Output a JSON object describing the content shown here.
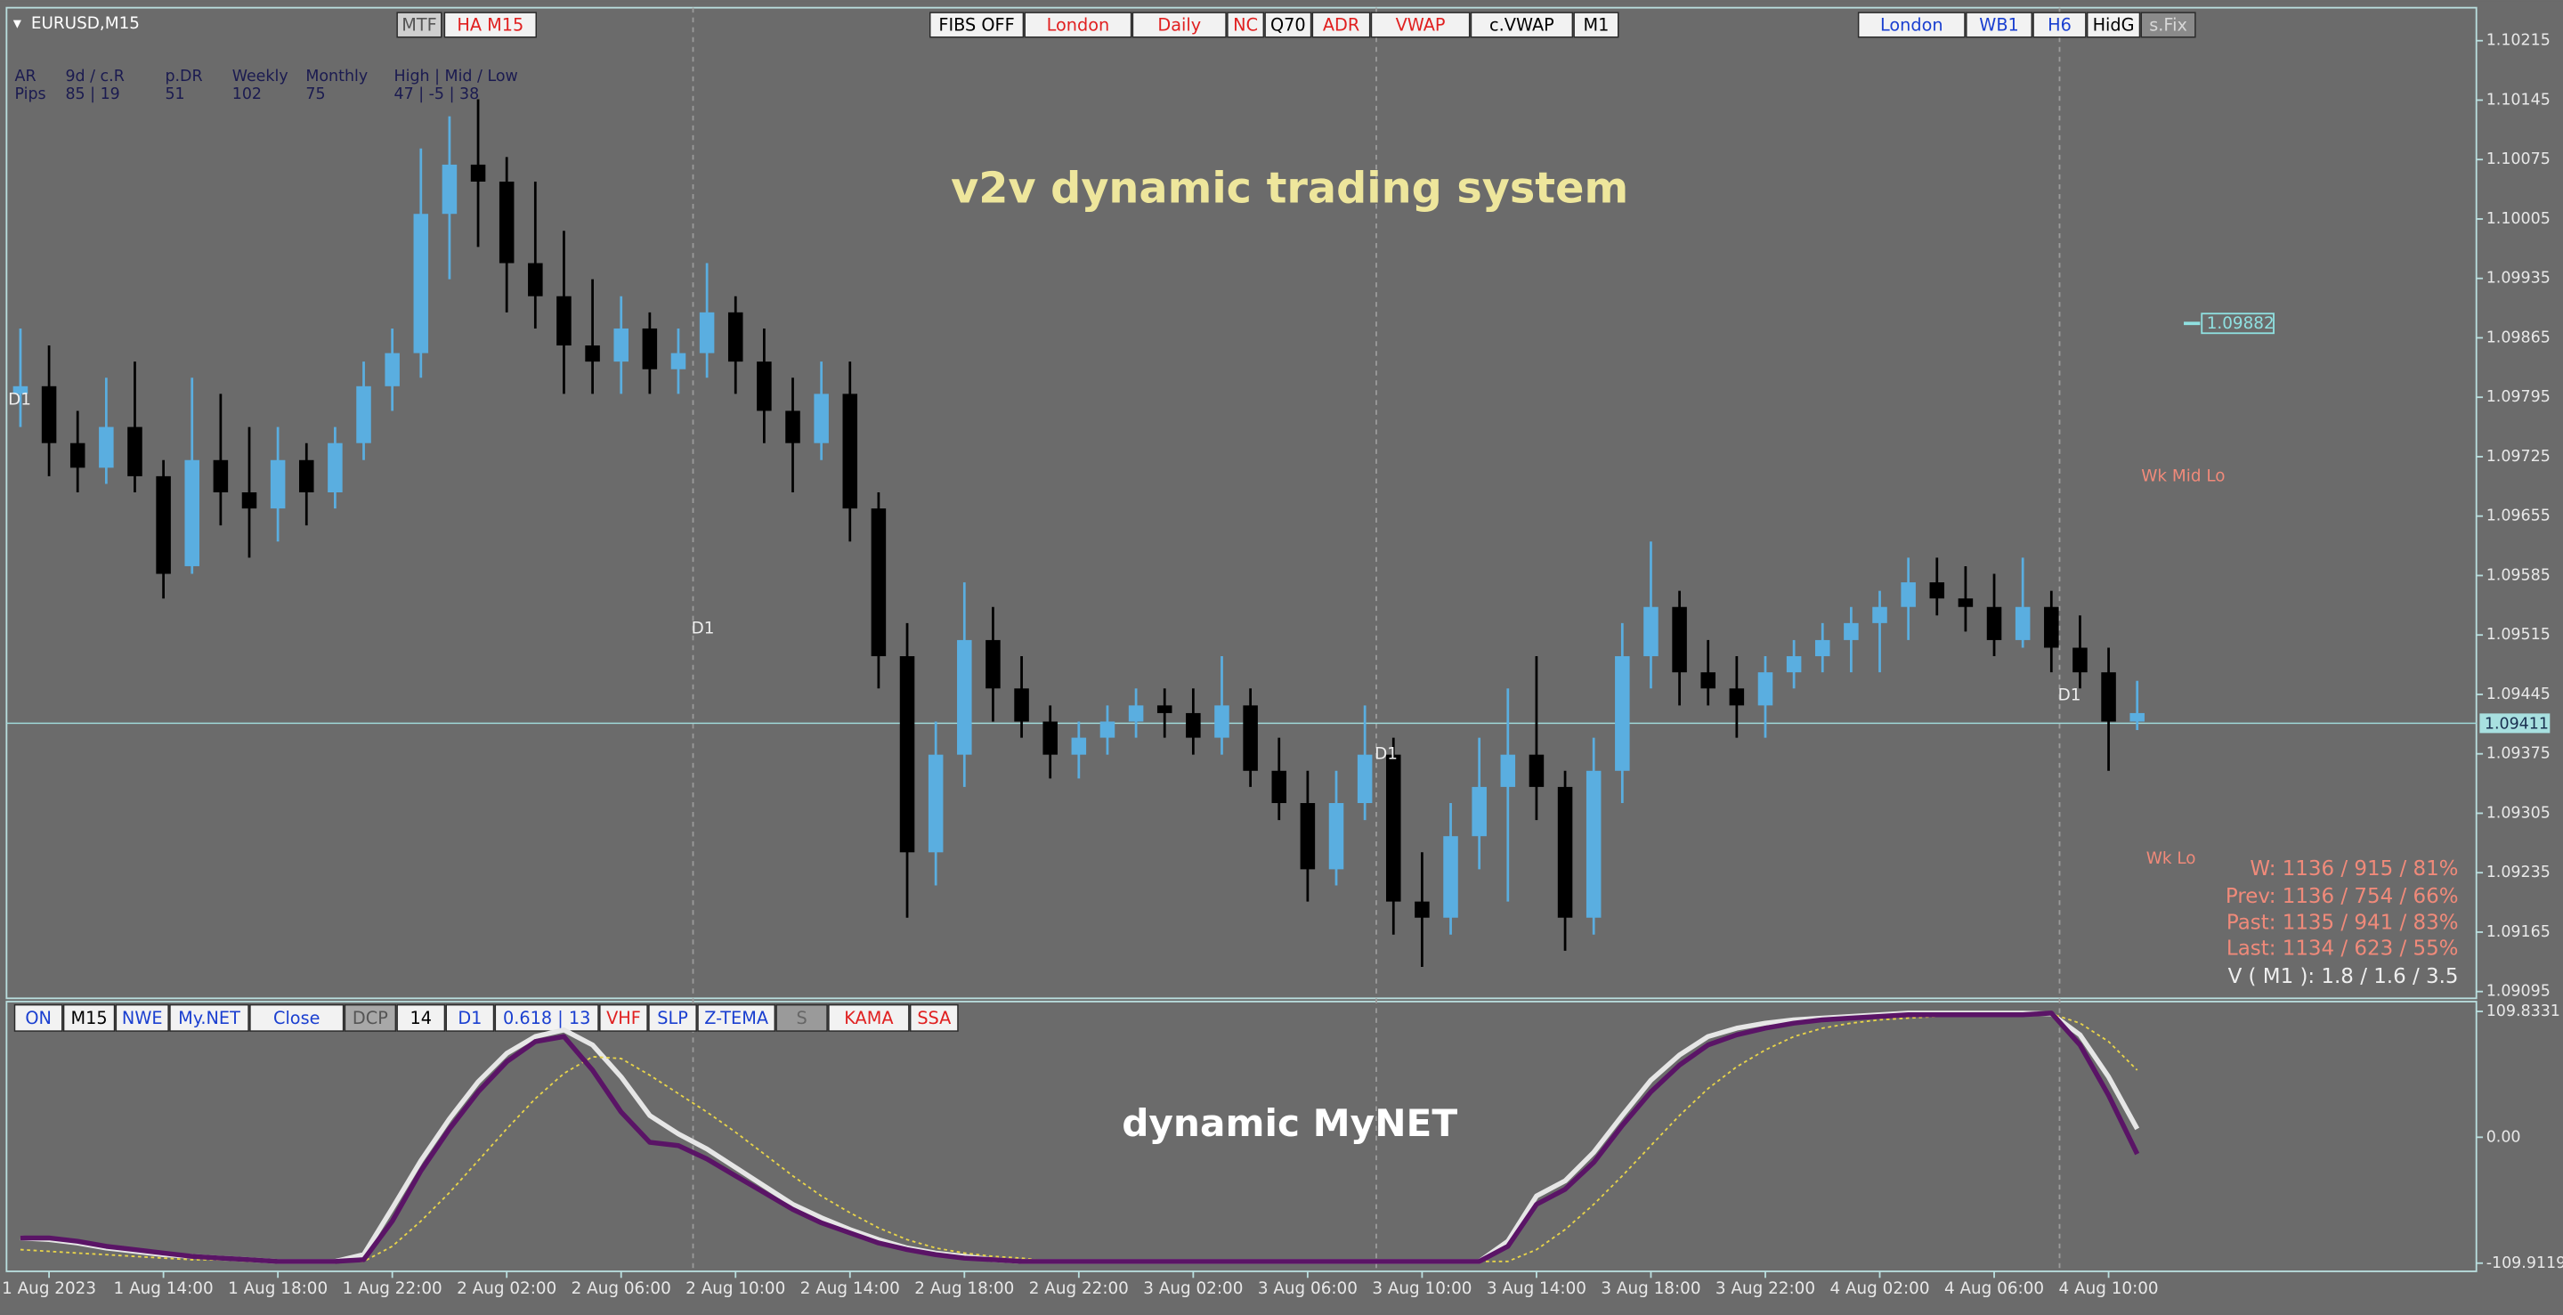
{
  "header": {
    "symbol": "EURUSD,M15"
  },
  "toolbar": {
    "left": [
      "MTF",
      "HA M15"
    ],
    "center": [
      "FIBS OFF",
      "London",
      "Daily",
      "NC",
      "Q70",
      "ADR",
      "VWAP",
      "c.VWAP",
      "M1"
    ],
    "right": [
      "London",
      "WB1",
      "H6",
      "HidG",
      "s.Fix"
    ]
  },
  "info_panel": {
    "headers": [
      "AR",
      "9d / c.R",
      "p.DR",
      "Weekly",
      "Monthly",
      "High | Mid / Low"
    ],
    "row": [
      "Pips",
      "85 | 19",
      "51",
      "102",
      "75",
      "47 | -5 | 38"
    ]
  },
  "indicator_bar": [
    "ON",
    "M15",
    "NWE",
    "My.NET",
    "Close",
    "DCP",
    "14",
    "D1",
    "0.618 | 13",
    "VHF",
    "SLP",
    "Z-TEMA",
    "S",
    "KAMA",
    "SSA"
  ],
  "chart_data": [
    {
      "type": "candlestick",
      "title": "v2v dynamic trading system",
      "categories": [
        null,
        "1 Aug 2023",
        null,
        null,
        null,
        "1 Aug 14:00",
        null,
        null,
        null,
        "1 Aug 18:00",
        null,
        null,
        null,
        "1 Aug 22:00",
        null,
        null,
        null,
        "2 Aug 02:00",
        null,
        null,
        null,
        "2 Aug 06:00",
        null,
        null,
        null,
        "2 Aug 10:00",
        null,
        null,
        null,
        "2 Aug 14:00",
        null,
        null,
        null,
        "2 Aug 18:00",
        null,
        null,
        null,
        "2 Aug 22:00",
        null,
        null,
        null,
        "3 Aug 02:00",
        null,
        null,
        null,
        "3 Aug 06:00",
        null,
        null,
        null,
        "3 Aug 10:00",
        null,
        null,
        null,
        "3 Aug 14:00",
        null,
        null,
        null,
        "3 Aug 18:00",
        null,
        null,
        null,
        "3 Aug 22:00",
        null,
        null,
        null,
        "4 Aug 02:00",
        null,
        null,
        null,
        "4 Aug 06:00",
        null,
        null,
        null,
        "4 Aug 10:00",
        null
      ],
      "open": [
        1.09799,
        1.09808,
        1.09741,
        1.09712,
        1.0976,
        1.09702,
        1.09596,
        1.09721,
        1.09683,
        1.09664,
        1.09721,
        1.09683,
        1.09741,
        1.09808,
        1.09847,
        1.10011,
        1.10069,
        1.10049,
        1.09953,
        1.09914,
        1.09856,
        1.09837,
        1.09876,
        1.09828,
        1.09847,
        1.09895,
        1.09837,
        1.09779,
        1.09741,
        1.09799,
        1.09664,
        1.0949,
        1.09259,
        1.09374,
        1.09509,
        1.09452,
        1.09413,
        1.09374,
        1.09394,
        1.09413,
        1.09432,
        1.09423,
        1.09394,
        1.09432,
        1.09355,
        1.09317,
        1.09239,
        1.09317,
        1.09374,
        1.09201,
        1.09182,
        1.09278,
        1.09336,
        1.09374,
        1.09336,
        1.09182,
        1.09355,
        1.0949,
        1.09548,
        1.09471,
        1.09452,
        1.09432,
        1.09471,
        1.0949,
        1.09509,
        1.09529,
        1.09548,
        1.09577,
        1.09558,
        1.09548,
        1.09509,
        1.09548,
        1.095,
        1.09471,
        1.09413
      ],
      "high": [
        1.09876,
        1.09856,
        1.09779,
        1.09818,
        1.09837,
        1.09721,
        1.09818,
        1.09799,
        1.0976,
        1.0976,
        1.09741,
        1.0976,
        1.09837,
        1.09876,
        1.10088,
        1.10126,
        1.10146,
        1.10078,
        1.10049,
        1.09991,
        1.09934,
        1.09914,
        1.09895,
        1.09876,
        1.09953,
        1.09914,
        1.09876,
        1.09818,
        1.09837,
        1.09837,
        1.09683,
        1.09529,
        1.09413,
        1.09577,
        1.09548,
        1.0949,
        1.09432,
        1.09413,
        1.09432,
        1.09452,
        1.09452,
        1.09452,
        1.0949,
        1.09452,
        1.09394,
        1.09355,
        1.09355,
        1.09432,
        1.09394,
        1.09259,
        1.09317,
        1.09394,
        1.09452,
        1.0949,
        1.09355,
        1.09394,
        1.09529,
        1.09625,
        1.09567,
        1.09509,
        1.0949,
        1.0949,
        1.09509,
        1.09529,
        1.09548,
        1.09567,
        1.09606,
        1.09606,
        1.09596,
        1.09587,
        1.09606,
        1.09567,
        1.09538,
        1.095,
        1.09461
      ],
      "low": [
        1.0976,
        1.09702,
        1.09683,
        1.09693,
        1.09683,
        1.09558,
        1.09587,
        1.09644,
        1.09606,
        1.09625,
        1.09644,
        1.09664,
        1.09721,
        1.09779,
        1.09818,
        1.09934,
        1.09972,
        1.09895,
        1.09876,
        1.09799,
        1.09799,
        1.09799,
        1.09799,
        1.09799,
        1.09818,
        1.09799,
        1.09741,
        1.09683,
        1.09721,
        1.09625,
        1.09452,
        1.09182,
        1.0922,
        1.09336,
        1.09413,
        1.09394,
        1.09346,
        1.09346,
        1.09374,
        1.09394,
        1.09394,
        1.09374,
        1.09374,
        1.09336,
        1.09297,
        1.09201,
        1.0922,
        1.09297,
        1.09162,
        1.09124,
        1.09162,
        1.09239,
        1.09201,
        1.09297,
        1.09143,
        1.09162,
        1.09317,
        1.09452,
        1.09432,
        1.09432,
        1.09394,
        1.09394,
        1.09452,
        1.09471,
        1.09471,
        1.09471,
        1.09509,
        1.09538,
        1.09519,
        1.0949,
        1.095,
        1.09471,
        1.09452,
        1.09355,
        1.09403
      ],
      "close": [
        1.09808,
        1.09741,
        1.09712,
        1.0976,
        1.09702,
        1.09587,
        1.09721,
        1.09683,
        1.09664,
        1.09721,
        1.09683,
        1.09741,
        1.09808,
        1.09847,
        1.10011,
        1.10069,
        1.10049,
        1.09953,
        1.09914,
        1.09856,
        1.09837,
        1.09876,
        1.09828,
        1.09847,
        1.09895,
        1.09837,
        1.09779,
        1.09741,
        1.09799,
        1.09664,
        1.0949,
        1.09259,
        1.09374,
        1.09509,
        1.09452,
        1.09413,
        1.09374,
        1.09394,
        1.09413,
        1.09432,
        1.09423,
        1.09394,
        1.09432,
        1.09355,
        1.09317,
        1.09239,
        1.09317,
        1.09374,
        1.09201,
        1.09182,
        1.09278,
        1.09336,
        1.09374,
        1.09336,
        1.09182,
        1.09355,
        1.0949,
        1.09548,
        1.09471,
        1.09452,
        1.09432,
        1.09471,
        1.0949,
        1.09509,
        1.09529,
        1.09548,
        1.09577,
        1.09558,
        1.09548,
        1.09509,
        1.09548,
        1.095,
        1.09471,
        1.09413,
        1.09423
      ],
      "up_color": "#5aaee0",
      "down_color": "#000000",
      "ylim": [
        1.09087,
        1.1025
      ],
      "yticks": [
        1.10215,
        1.10145,
        1.10075,
        1.10005,
        1.09935,
        1.09865,
        1.09795,
        1.09725,
        1.09655,
        1.09585,
        1.09515,
        1.09445,
        1.09375,
        1.09305,
        1.09235,
        1.09165,
        1.09095
      ],
      "grid": false,
      "last_price": 1.09411,
      "price_marker": 1.09882,
      "annotations": [
        "D1",
        "D1",
        "D1",
        "D1",
        "Wk Mid Lo",
        "Wk Lo"
      ],
      "stats": [
        "W: 1136 / 915 / 81%",
        "Prev: 1136 / 754 / 66%",
        "Past: 1135 / 941 / 83%",
        "Last: 1134 / 623 / 55%",
        "V ( M1 ): 1.8 / 1.6 / 3.5"
      ]
    },
    {
      "type": "line",
      "title": "dynamic MyNET",
      "ylim": [
        -109.9119,
        109.8331
      ],
      "yticks": [
        109.8331,
        {
          "value": 0,
          "label": "0.00"
        },
        -109.9119
      ],
      "series": [
        {
          "color": "#e6e6e6",
          "width": 3,
          "dash": false,
          "values": [
            -87.9,
            -89.3,
            -92.3,
            -96.7,
            -99.6,
            -102.5,
            -104.0,
            -105.5,
            -106.9,
            -108.4,
            -108.4,
            -108.4,
            -102.5,
            -62.0,
            -20.5,
            16.1,
            48.3,
            73.2,
            87.9,
            93.7,
            80.6,
            52.7,
            19.0,
            2.9,
            -10.3,
            -26.4,
            -42.5,
            -58.6,
            -70.3,
            -80.6,
            -89.4,
            -96.7,
            -101.1,
            -104.0,
            -106.9,
            -108.4,
            -108.4,
            -108.4,
            -108.4,
            -108.4,
            -108.4,
            -108.4,
            -108.4,
            -108.4,
            -108.4,
            -108.4,
            -108.4,
            -108.4,
            -108.4,
            -108.4,
            -108.4,
            -108.4,
            -90.8,
            -51.3,
            -38.1,
            -13.2,
            19.0,
            49.8,
            71.8,
            87.9,
            95.2,
            99.6,
            102.5,
            104.0,
            105.5,
            106.9,
            108.4,
            108.4,
            108.4,
            108.4,
            108.4,
            107.7,
            89.4,
            52.7,
            7.3
          ]
        },
        {
          "color": "#e8d44a",
          "width": 1,
          "dash": true,
          "values": [
            -98.1,
            -99.6,
            -101.1,
            -102.5,
            -104.0,
            -105.5,
            -106.9,
            -106.9,
            -108.4,
            -108.4,
            -108.4,
            -108.4,
            -108.4,
            -95.2,
            -73.2,
            -48.3,
            -20.5,
            7.3,
            33.7,
            55.7,
            70.3,
            68.7,
            54.2,
            38.1,
            22.0,
            4.4,
            -14.6,
            -33.7,
            -51.3,
            -65.9,
            -79.1,
            -89.4,
            -96.7,
            -101.1,
            -104.0,
            -105.5,
            -108.4,
            -108.4,
            -108.4,
            -108.4,
            -108.4,
            -108.4,
            -108.4,
            -108.4,
            -108.4,
            -108.4,
            -108.4,
            -108.4,
            -108.4,
            -108.4,
            -108.4,
            -108.4,
            -108.4,
            -98.1,
            -80.6,
            -58.6,
            -33.7,
            -7.3,
            19.0,
            42.5,
            61.5,
            76.2,
            87.9,
            95.2,
            99.6,
            102.5,
            104.0,
            105.5,
            106.9,
            108.4,
            108.4,
            107.7,
            99.6,
            83.5,
            58.6
          ]
        },
        {
          "color": "#5a1466",
          "width": 3,
          "dash": false,
          "values": [
            -87.9,
            -87.9,
            -90.8,
            -95.2,
            -98.1,
            -101.1,
            -104.0,
            -105.5,
            -106.9,
            -108.4,
            -108.4,
            -108.4,
            -106.9,
            -73.2,
            -29.3,
            7.3,
            39.6,
            65.9,
            83.5,
            87.9,
            58.6,
            22.0,
            -4.4,
            -7.3,
            -19.0,
            -33.7,
            -48.3,
            -63.0,
            -74.7,
            -83.5,
            -92.3,
            -98.1,
            -102.5,
            -105.5,
            -106.9,
            -108.4,
            -108.4,
            -108.4,
            -108.4,
            -108.4,
            -108.4,
            -108.4,
            -108.4,
            -108.4,
            -108.4,
            -108.4,
            -108.4,
            -108.4,
            -108.4,
            -108.4,
            -108.4,
            -108.4,
            -95.2,
            -58.6,
            -45.4,
            -22.0,
            10.3,
            39.6,
            63.0,
            80.6,
            89.4,
            95.2,
            99.6,
            102.5,
            104.0,
            105.5,
            106.9,
            106.9,
            106.9,
            106.9,
            106.9,
            108.4,
            80.6,
            36.6,
            -14.6
          ]
        }
      ]
    }
  ]
}
